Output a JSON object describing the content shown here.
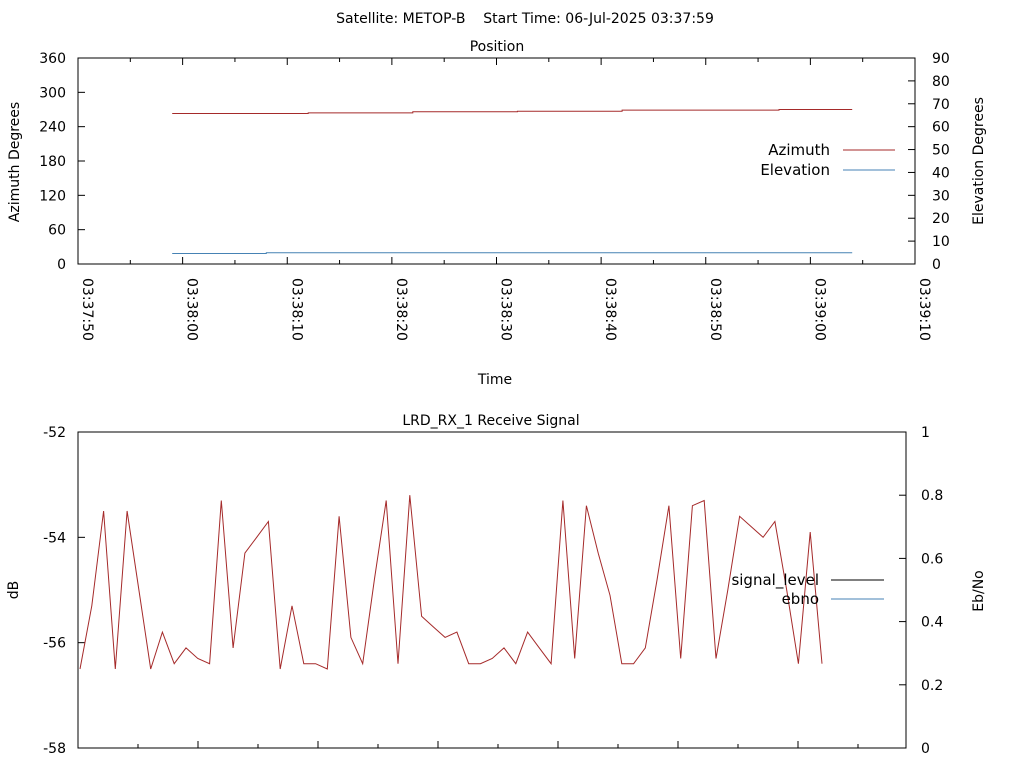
{
  "header": {
    "text": "Satellite: METOP-B    Start Time: 06-Jul-2025 03:37:59"
  },
  "chart_data": [
    {
      "type": "line",
      "title": "Position",
      "xlabel": "Time",
      "ylabel": "Azimuth Degrees",
      "y2label": "Elevation Degrees",
      "xlim": [
        "03:37:50",
        "03:39:10"
      ],
      "ylim": [
        0,
        360
      ],
      "y2lim": [
        0,
        90
      ],
      "x_ticks": [
        "03:37:50",
        "03:38:00",
        "03:38:10",
        "03:38:20",
        "03:38:30",
        "03:38:40",
        "03:38:50",
        "03:39:00",
        "03:39:10"
      ],
      "y_ticks": [
        "0",
        "60",
        "120",
        "180",
        "240",
        "300",
        "360"
      ],
      "y2_ticks": [
        "0",
        "10",
        "20",
        "30",
        "40",
        "50",
        "60",
        "70",
        "80",
        "90"
      ],
      "legend_position": "right",
      "series": [
        {
          "name": "Azimuth",
          "axis": "y",
          "color": "#a52a2a",
          "x": [
            "03:37:59",
            "03:38:02",
            "03:38:07",
            "03:38:12",
            "03:38:17",
            "03:38:22",
            "03:38:27",
            "03:38:32",
            "03:38:37",
            "03:38:42",
            "03:38:47",
            "03:38:52",
            "03:38:57",
            "03:39:02",
            "03:39:04"
          ],
          "y": [
            263,
            263,
            263,
            264,
            264,
            266,
            266,
            267,
            267,
            269,
            269,
            269,
            270,
            270,
            270
          ]
        },
        {
          "name": "Elevation",
          "axis": "y2",
          "color": "#4682b4",
          "x": [
            "03:37:59",
            "03:38:07",
            "03:38:08",
            "03:38:17",
            "03:38:27",
            "03:38:37",
            "03:38:47",
            "03:38:57",
            "03:39:04"
          ],
          "y": [
            4.6,
            4.6,
            4.9,
            4.9,
            4.9,
            4.9,
            4.9,
            4.9,
            4.9
          ]
        }
      ]
    },
    {
      "type": "line",
      "title": "LRD_RX_1 Receive Signal",
      "xlabel": "",
      "ylabel": "dB",
      "y2label": "Eb/No",
      "ylim": [
        -58,
        -52
      ],
      "y2lim": [
        0,
        1
      ],
      "y_ticks": [
        "-52",
        "-54",
        "-56",
        "-58"
      ],
      "y2_ticks": [
        "0",
        "0.2",
        "0.4",
        "0.6",
        "0.8",
        "1"
      ],
      "x_minor_ticks": 13,
      "legend_position": "right",
      "series": [
        {
          "name": "signal_level",
          "axis": "y",
          "color": "#a52a2a",
          "legend_color": "#000000",
          "values": [
            -56.5,
            -55.3,
            -53.5,
            -56.5,
            -53.5,
            -55.0,
            -56.5,
            -55.8,
            -56.4,
            -56.1,
            -56.3,
            -56.4,
            -53.3,
            -56.1,
            -54.3,
            -54.0,
            -53.7,
            -56.5,
            -55.3,
            -56.4,
            -56.4,
            -56.5,
            -53.6,
            -55.9,
            -56.4,
            -54.8,
            -53.3,
            -56.4,
            -53.2,
            -55.5,
            -55.7,
            -55.9,
            -55.8,
            -56.4,
            -56.4,
            -56.3,
            -56.1,
            -56.4,
            -55.8,
            -56.1,
            -56.4,
            -53.3,
            -56.3,
            -53.4,
            -54.3,
            -55.1,
            -56.4,
            -56.4,
            -56.1,
            -54.8,
            -53.4,
            -56.3,
            -53.4,
            -53.3,
            -56.3,
            -55.0,
            -53.6,
            -53.8,
            -54.0,
            -53.7,
            -55.0,
            -56.4,
            -53.9,
            -56.4
          ]
        },
        {
          "name": "ebno",
          "axis": "y2",
          "color": "#4682b4",
          "values": []
        }
      ]
    }
  ]
}
